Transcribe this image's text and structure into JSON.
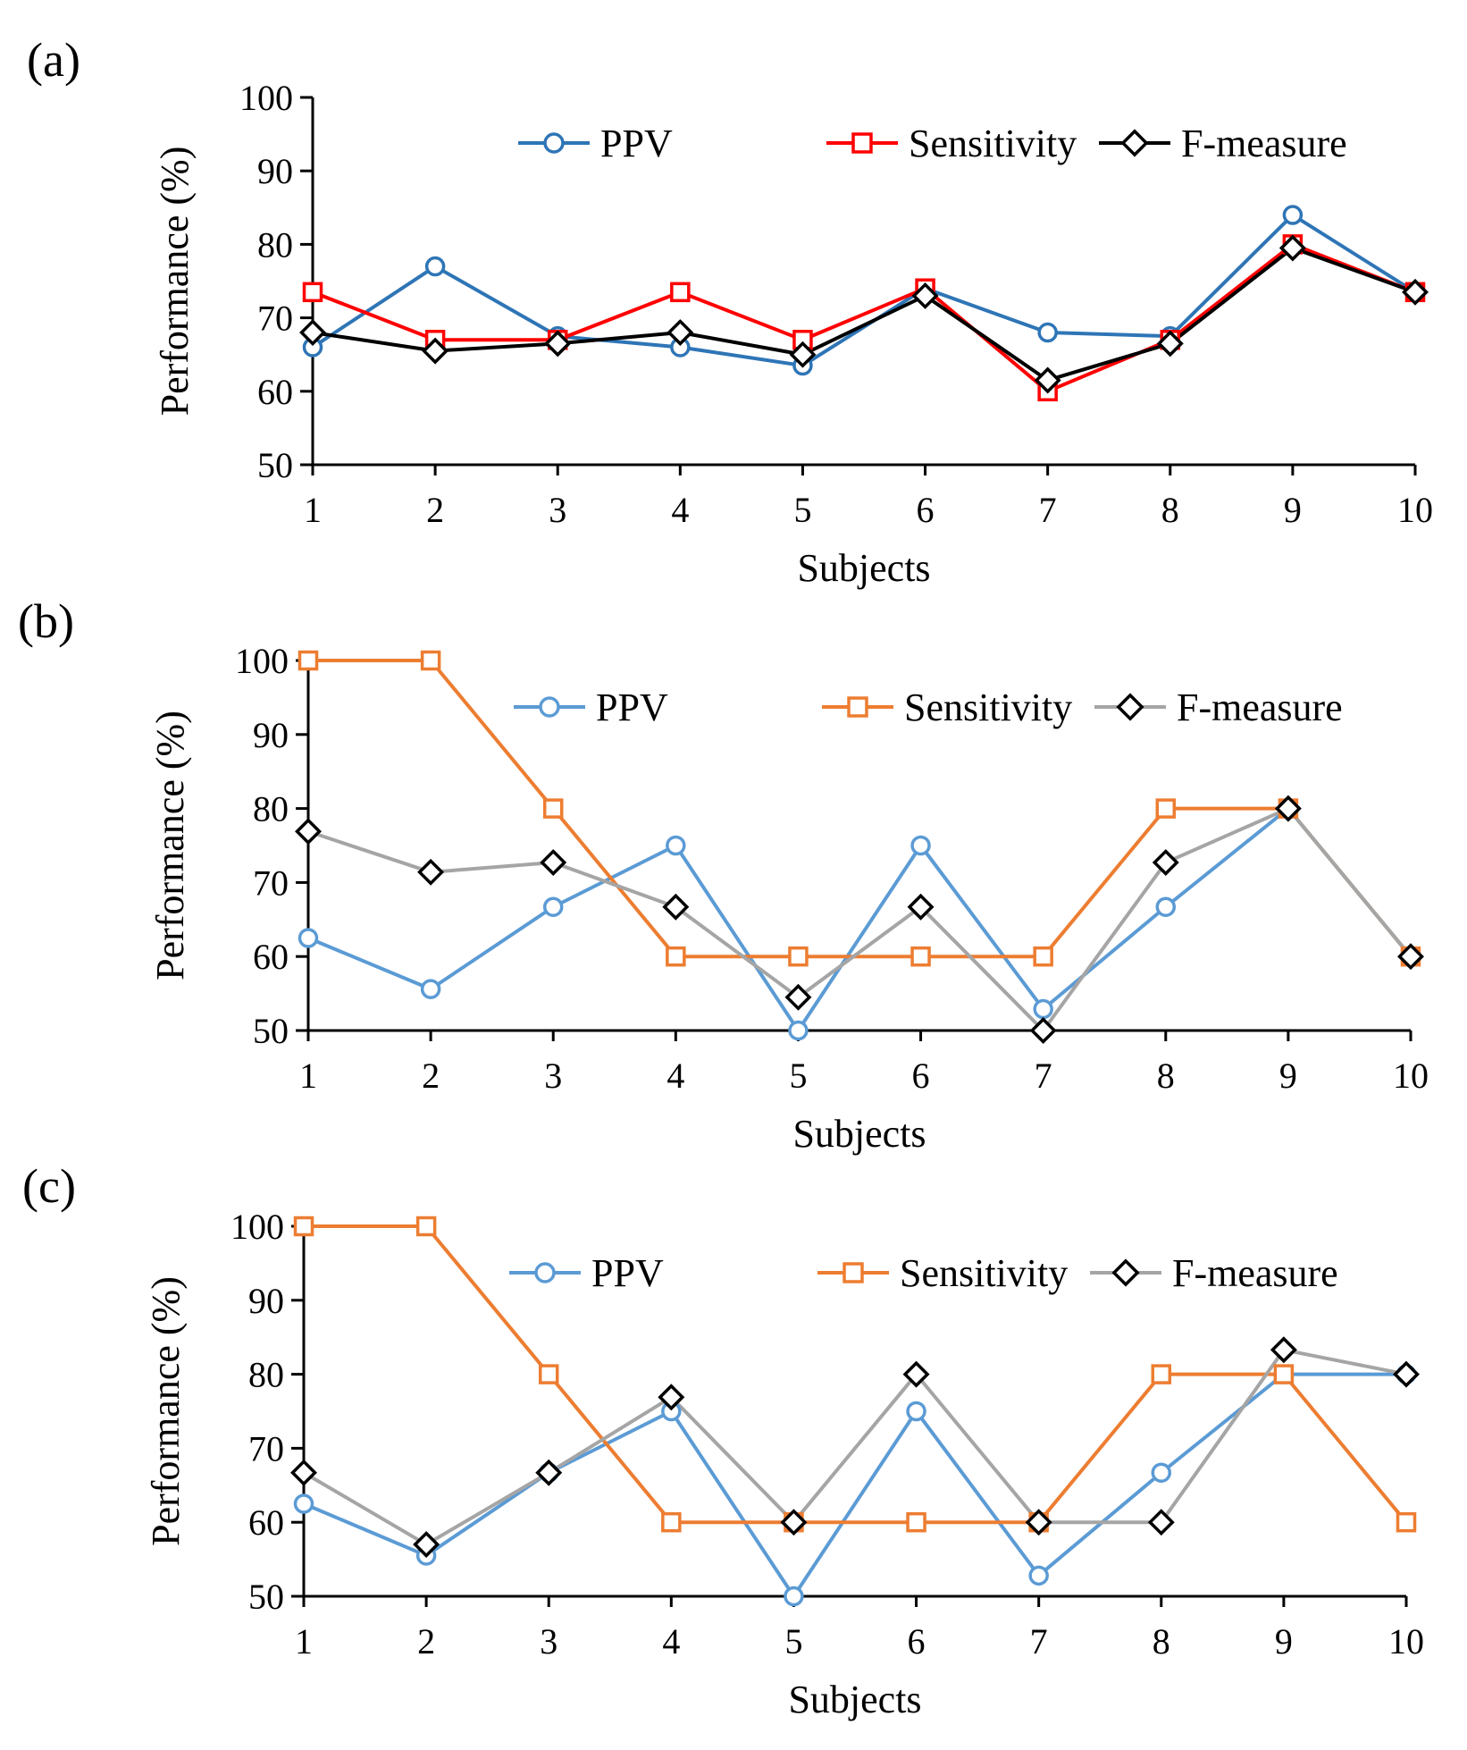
{
  "figure": {
    "colors": {
      "ppv": "#2E75B6",
      "ppv_light": "#5B9BD5",
      "sens_red": "#FF0000",
      "sens_orange": "#ED7D31",
      "fmeasure_black": "#000000",
      "fmeasure_gray": "#A5A5A5",
      "axis": "#000000"
    }
  },
  "chart_data": [
    {
      "panel": "(a)",
      "type": "line",
      "categories": [
        "1",
        "2",
        "3",
        "4",
        "5",
        "6",
        "7",
        "8",
        "9",
        "10"
      ],
      "xlabel": "Subjects",
      "ylabel": "Performance (%)",
      "ylim": [
        50,
        100
      ],
      "yticks": [
        "50",
        "60",
        "70",
        "80",
        "90",
        "100"
      ],
      "legend_position": "top",
      "series": [
        {
          "name": "PPV",
          "marker": "circle",
          "color": "#2E75B6",
          "values": [
            66,
            77,
            67.5,
            66,
            63.5,
            74,
            68,
            67.5,
            84,
            73.5
          ]
        },
        {
          "name": "Sensitivity",
          "marker": "square",
          "color": "#FF0000",
          "values": [
            73.5,
            67,
            67,
            73.5,
            67,
            74,
            60,
            67,
            80,
            73.5
          ]
        },
        {
          "name": "F-measure",
          "marker": "diamond",
          "color": "#000000",
          "values": [
            68,
            65.5,
            66.5,
            68,
            65,
            73,
            61.5,
            66.5,
            79.5,
            73.5
          ]
        }
      ]
    },
    {
      "panel": "(b)",
      "type": "line",
      "categories": [
        "1",
        "2",
        "3",
        "4",
        "5",
        "6",
        "7",
        "8",
        "9",
        "10"
      ],
      "xlabel": "Subjects",
      "ylabel": "Performance (%)",
      "ylim": [
        50,
        100
      ],
      "yticks": [
        "50",
        "60",
        "70",
        "80",
        "90",
        "100"
      ],
      "legend_position": "top",
      "series": [
        {
          "name": "PPV",
          "marker": "circle",
          "color": "#5B9BD5",
          "values": [
            62.5,
            55.6,
            66.7,
            75,
            50,
            75,
            52.9,
            66.7,
            80,
            60
          ]
        },
        {
          "name": "Sensitivity",
          "marker": "square",
          "color": "#ED7D31",
          "values": [
            100,
            100,
            80,
            60,
            60,
            60,
            60,
            80,
            80,
            60
          ]
        },
        {
          "name": "F-measure",
          "marker": "diamond",
          "color": "#A5A5A5",
          "values": [
            76.9,
            71.4,
            72.7,
            66.7,
            54.5,
            66.7,
            50,
            72.7,
            80,
            60
          ]
        }
      ]
    },
    {
      "panel": "(c)",
      "type": "line",
      "categories": [
        "1",
        "2",
        "3",
        "4",
        "5",
        "6",
        "7",
        "8",
        "9",
        "10"
      ],
      "xlabel": "Subjects",
      "ylabel": "Performance (%)",
      "ylim": [
        50,
        100
      ],
      "yticks": [
        "50",
        "60",
        "70",
        "80",
        "90",
        "100"
      ],
      "legend_position": "top",
      "series": [
        {
          "name": "PPV",
          "marker": "circle",
          "color": "#5B9BD5",
          "values": [
            62.5,
            55.5,
            66.7,
            75,
            50,
            75,
            52.8,
            66.7,
            80,
            80
          ]
        },
        {
          "name": "Sensitivity",
          "marker": "square",
          "color": "#ED7D31",
          "values": [
            100,
            100,
            80,
            60,
            60,
            60,
            60,
            80,
            80,
            60
          ]
        },
        {
          "name": "F-measure",
          "marker": "diamond",
          "color": "#A5A5A5",
          "values": [
            66.7,
            57,
            66.7,
            76.9,
            60,
            80,
            60,
            60,
            83.3,
            80
          ]
        }
      ]
    }
  ]
}
